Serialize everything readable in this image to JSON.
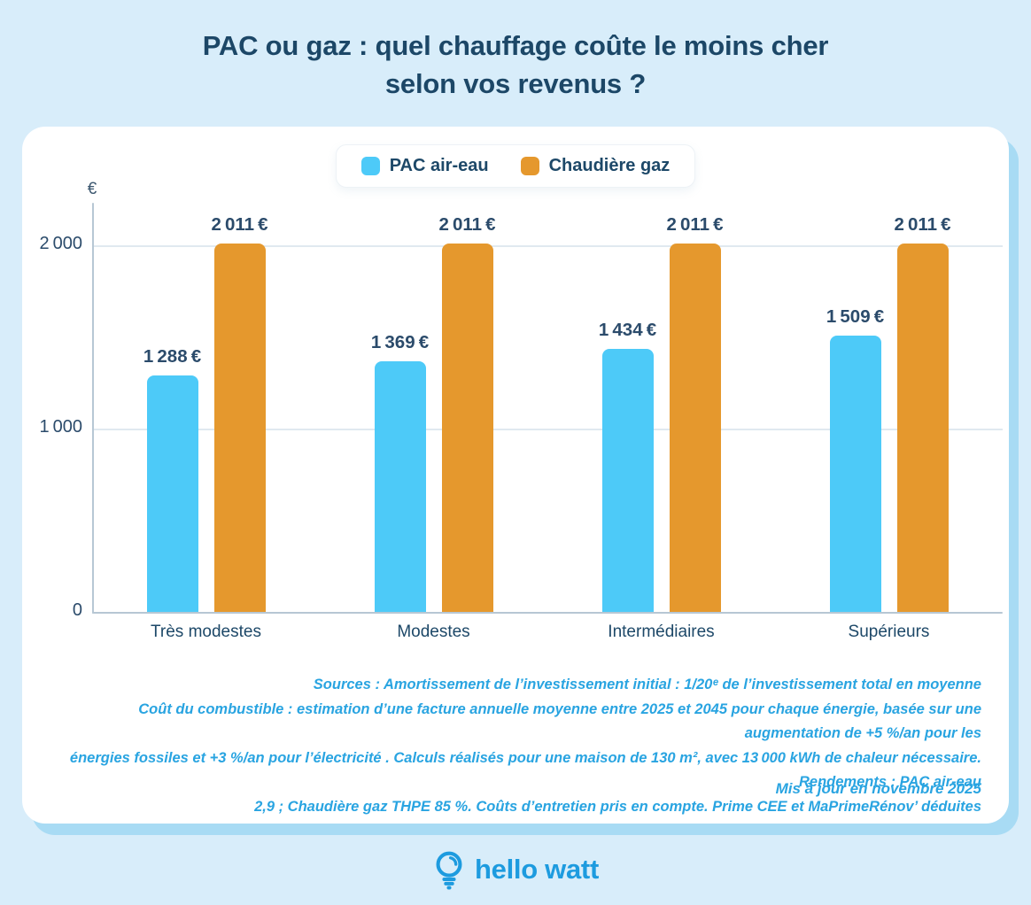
{
  "title": {
    "line1": "PAC ou gaz : quel chauffage coûte le moins cher",
    "line2": "selon vos revenus ?"
  },
  "colors": {
    "page_background": "#D8EDFA",
    "card_background": "#FFFFFF",
    "card_shadow": "#A8DBF4",
    "title_navy": "#1C4767",
    "pac_blue": "#4DCAF8",
    "gaz_orange": "#E5982D",
    "footer_blue": "#29A4E1",
    "brand_blue": "#1D9BDF"
  },
  "chart_data": {
    "type": "bar",
    "title": "PAC ou gaz : quel chauffage coûte le moins cher selon vos revenus ?",
    "categories": [
      "Très modestes",
      "Modestes",
      "Intermédiaires",
      "Supérieurs"
    ],
    "series": [
      {
        "name": "PAC air-eau",
        "color": "#4DCAF8",
        "values": [
          1288,
          1369,
          1434,
          1509
        ],
        "labels": [
          "1 288 €",
          "1 369 €",
          "1 434 €",
          "1 509 €"
        ]
      },
      {
        "name": "Chaudière gaz",
        "color": "#E5982D",
        "values": [
          2011,
          2011,
          2011,
          2011
        ],
        "labels": [
          "2 011 €",
          "2 011 €",
          "2 011 €",
          "2 011 €"
        ]
      }
    ],
    "y_axis": {
      "unit": "€",
      "ticks": [
        0,
        1000,
        2000
      ],
      "tick_labels": [
        "0",
        "1 000",
        "2 000"
      ],
      "range": [
        0,
        2200
      ]
    },
    "grid": true,
    "legend_position": "top-center"
  },
  "footer": {
    "source_lines": [
      "Sources : Amortissement de l’investissement initial : 1/20ᵉ de l’investissement total en moyenne",
      "Coût du combustible : estimation d’une facture annuelle moyenne entre 2025 et 2045 pour chaque énergie, basée sur une augmentation de +5 %/an pour les",
      "énergies fossiles et +3 %/an pour l’électricité . Calculs réalisés pour une maison de 130 m², avec 13 000 kWh de chaleur nécessaire. Rendements : PAC air-eau",
      "2,9 ; Chaudière gaz THPE 85 %. Coûts d’entretien pris en compte. Prime CEE et MaPrimeRénov’ déduites"
    ],
    "updated": "Mis à jour en novembre 2025"
  },
  "brand": {
    "name": "hello watt",
    "icon": "lightbulb-icon"
  }
}
